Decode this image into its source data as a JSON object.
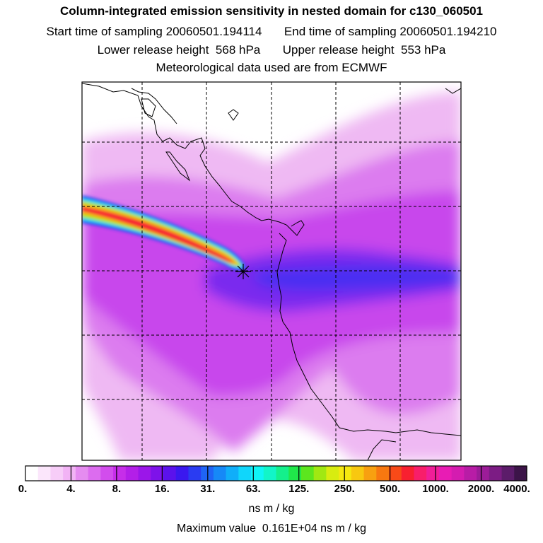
{
  "title": "Column-integrated emission sensitivity in nested domain for c130_060501",
  "start_label": "Start time of sampling",
  "start_value": "20060501.194114",
  "end_label": "End time of sampling",
  "end_value": "20060501.194210",
  "lower_label": "Lower release height",
  "lower_value": "568 hPa",
  "upper_label": "Upper release height",
  "upper_value": "553 hPa",
  "met_line": "Meteorological data used are from ECMWF",
  "colorbar": {
    "labels": [
      "0.",
      "4.",
      "8.",
      "16.",
      "31.",
      "63.",
      "125.",
      "250.",
      "500.",
      "1000.",
      "2000.",
      "4000."
    ],
    "colors": [
      "#ffffff",
      "#fbe6fb",
      "#f7cdf8",
      "#f2b3f5",
      "#e58cf0",
      "#dc6cef",
      "#d24ded",
      "#c62ee9",
      "#b31fe8",
      "#9b16e9",
      "#7e12ea",
      "#5b12ec",
      "#3a18ef",
      "#2a3cf2",
      "#1f64f5",
      "#1689f7",
      "#10aef9",
      "#10d6fb",
      "#10f5f5",
      "#12f5c8",
      "#14f08c",
      "#20e84a",
      "#5ce61e",
      "#a0e812",
      "#d8ec10",
      "#f5e810",
      "#f8c810",
      "#f8a010",
      "#f87810",
      "#f84a18",
      "#f82030",
      "#f81e6a",
      "#f01e98",
      "#e81cb4",
      "#d41cb0",
      "#b81ca6",
      "#9c1c98",
      "#7c1c84",
      "#5c1c6a",
      "#3c1448"
    ],
    "unit": "ns m / kg"
  },
  "max_label": "Maximum value",
  "max_value": "0.161E+04 ns m / kg"
}
